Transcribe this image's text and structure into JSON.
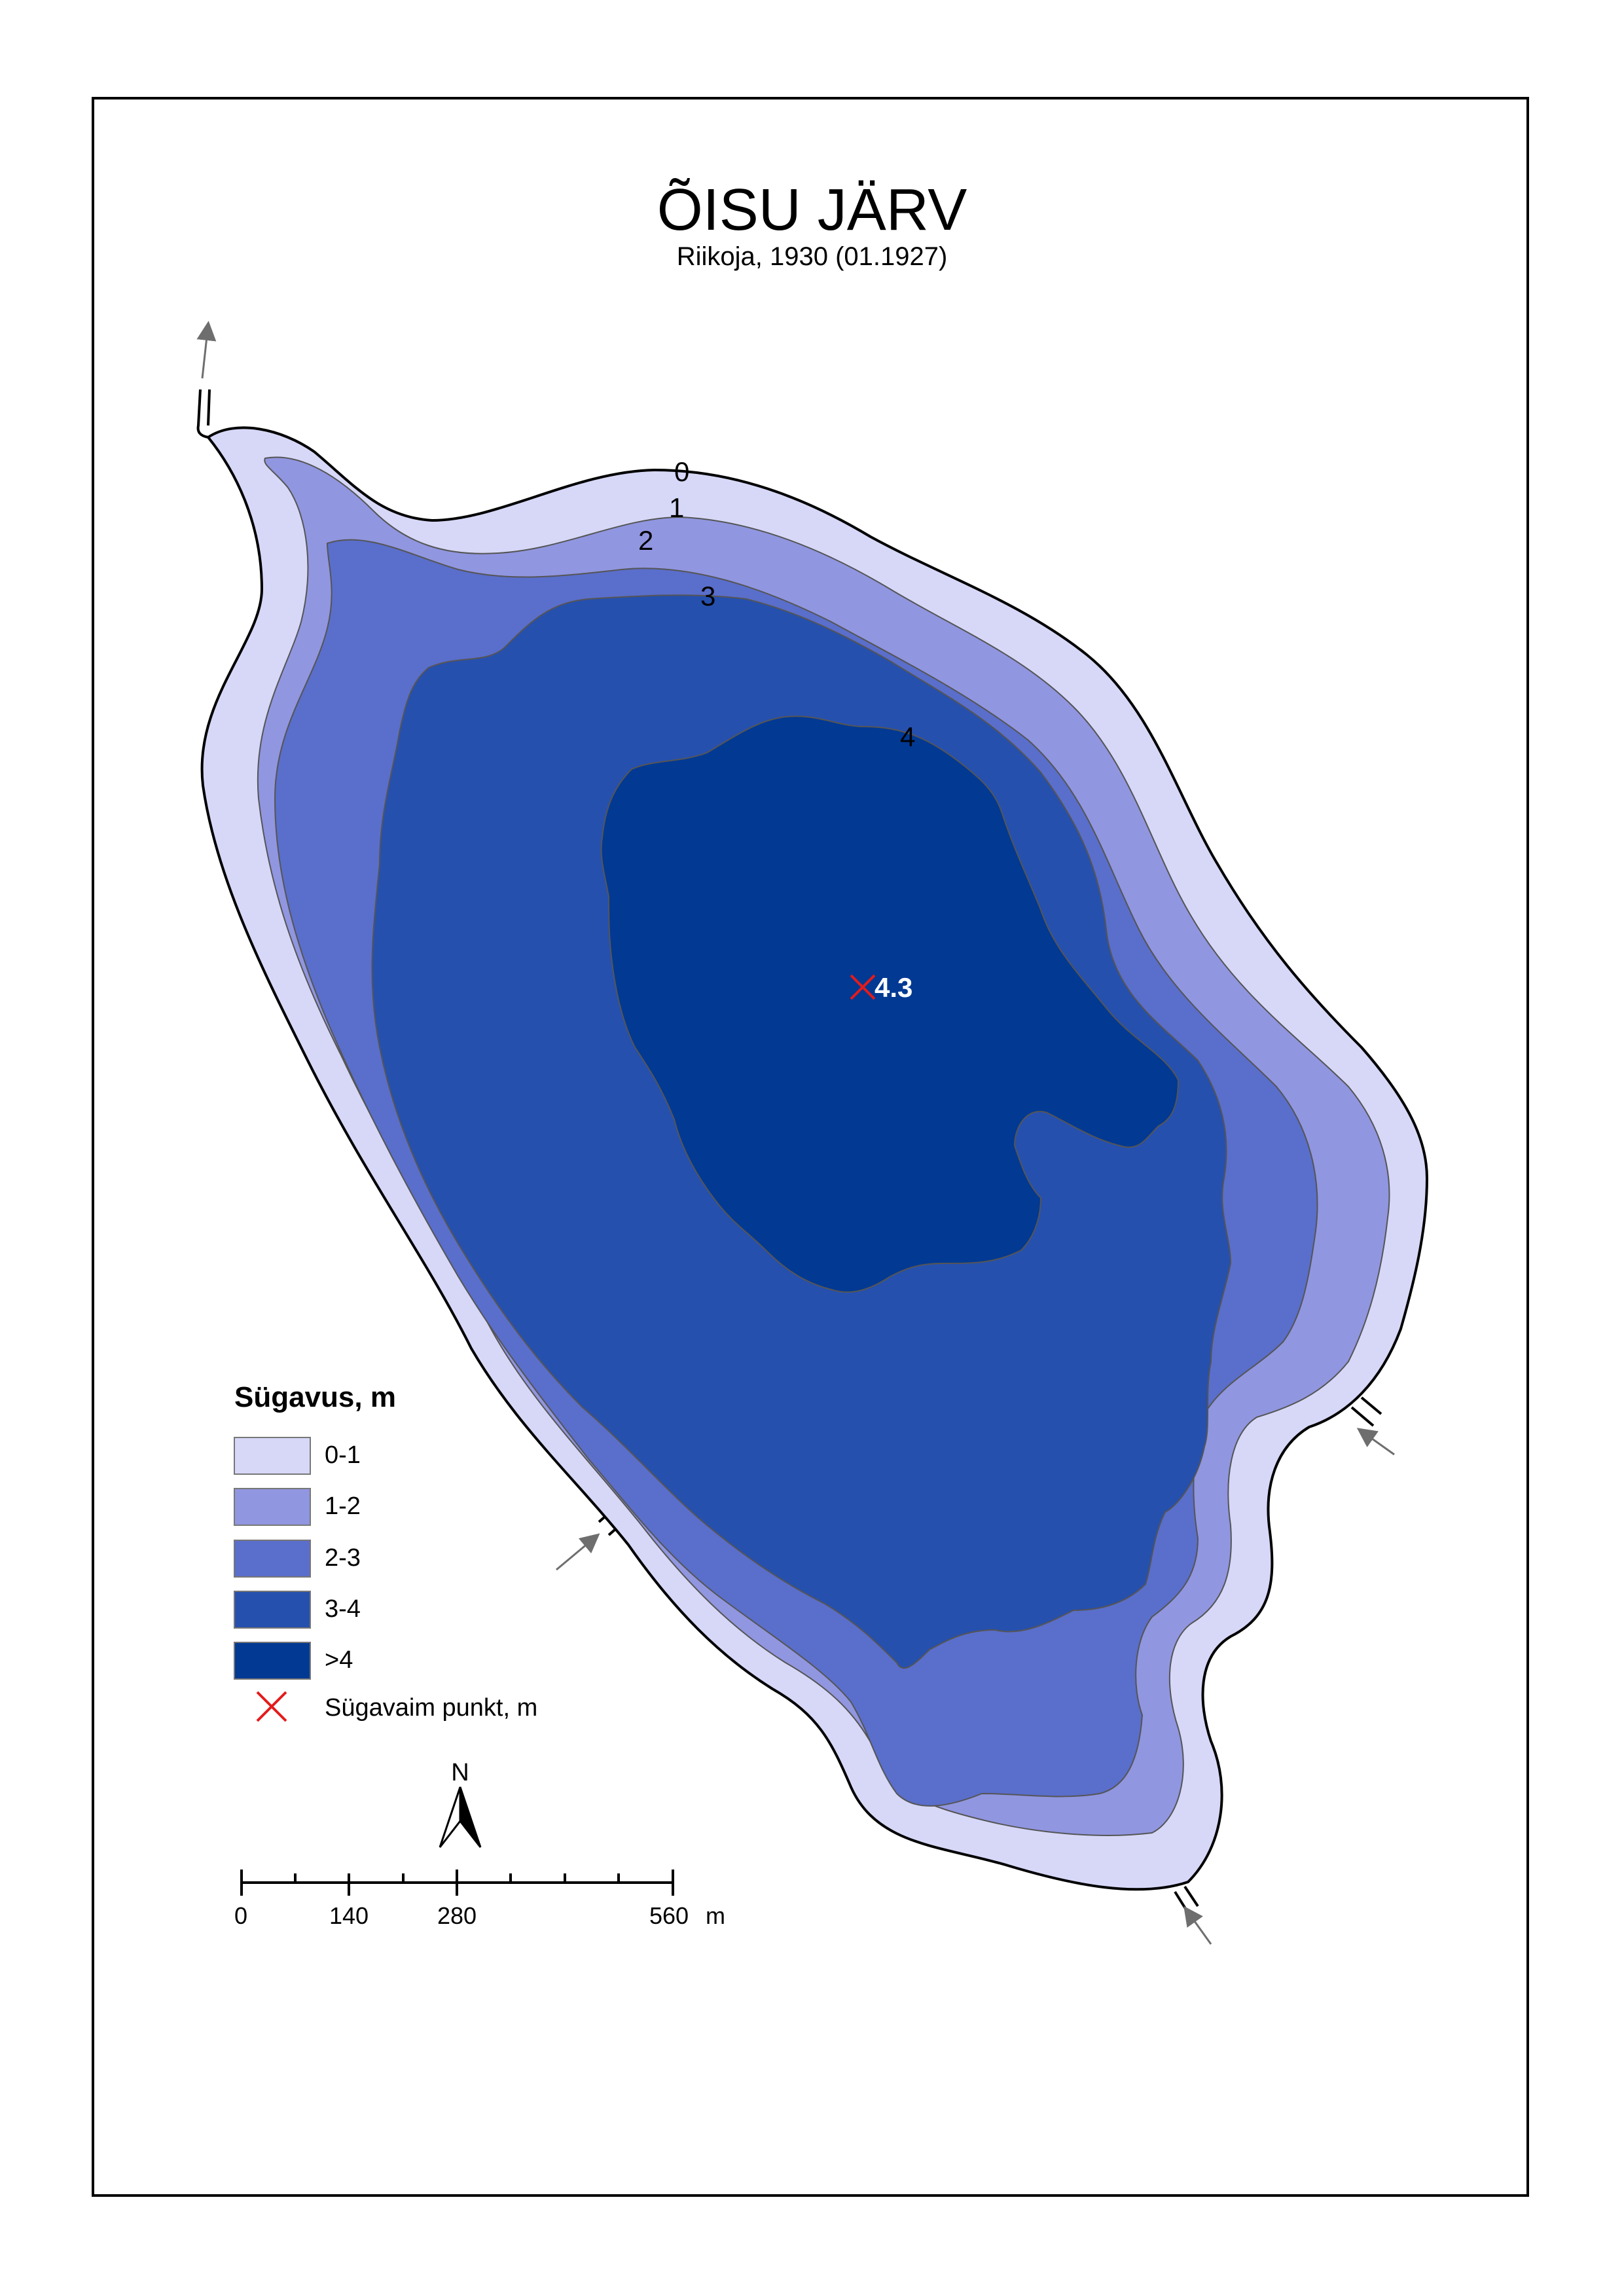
{
  "title": "ÕISU JÄRV",
  "subtitle": "Riikoja, 1930 (01.1927)",
  "colors": {
    "depth_0_1": "#d7d8f8",
    "depth_1_2": "#9096e0",
    "depth_2_3": "#5a6ecb",
    "depth_3_4": "#2650ae",
    "depth_gt4": "#013993",
    "deepest_marker": "#e41b1b",
    "shoreline": "#000000",
    "arrow": "#6e6e6e"
  },
  "contour_labels": [
    "0",
    "1",
    "2",
    "3",
    "4"
  ],
  "deepest_point": {
    "value": "4.3"
  },
  "legend": {
    "title": "Sügavus, m",
    "items": [
      {
        "label": "0-1",
        "color": "#d7d8f8"
      },
      {
        "label": "1-2",
        "color": "#9096e0"
      },
      {
        "label": "2-3",
        "color": "#5a6ecb"
      },
      {
        "label": "3-4",
        "color": "#2650ae"
      },
      {
        "label": ">4",
        "color": "#013993"
      }
    ],
    "deepest_label": "Sügavaim punkt, m"
  },
  "north_label": "N",
  "scale": {
    "labels": [
      "0",
      "140",
      "280",
      "560"
    ],
    "unit": "m"
  }
}
